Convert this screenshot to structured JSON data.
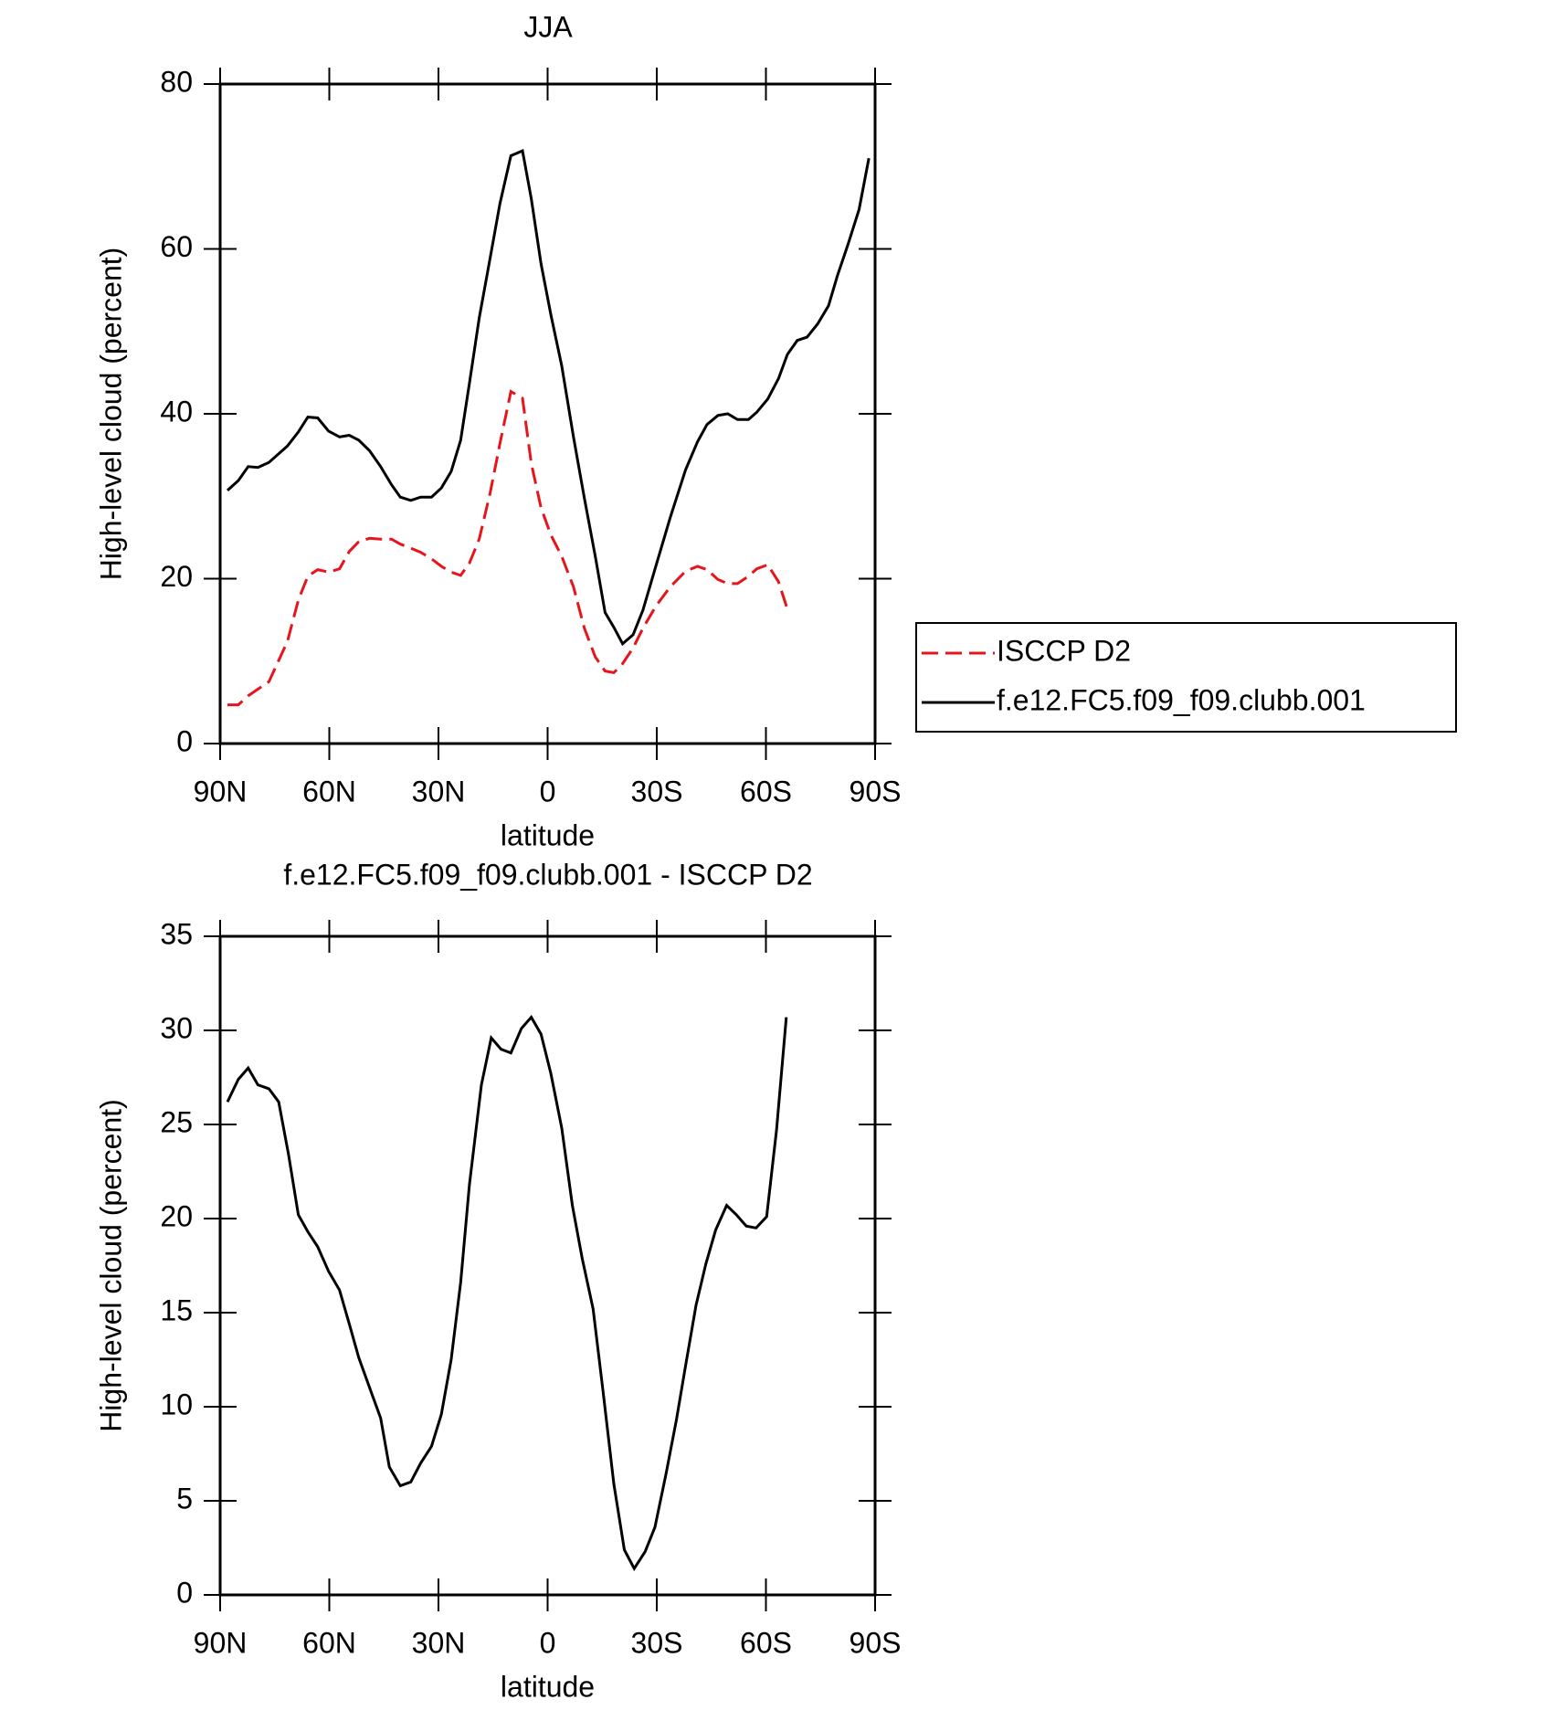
{
  "chart_data": [
    {
      "type": "line",
      "title": "JJA",
      "xlabel": "latitude",
      "ylabel": "High-level cloud (percent)",
      "x": [
        88,
        85,
        82.3,
        79.6,
        76.6,
        71.5,
        68.5,
        65.9,
        63.2,
        60.2,
        57.2,
        54.5,
        51.9,
        48.9,
        45.9,
        42.9,
        40.5,
        37.6,
        34.9,
        31.9,
        29.2,
        26.5,
        23.9,
        21.5,
        18.8,
        15.8,
        13.1,
        10.1,
        6.9,
        4.5,
        1.8,
        -0.9,
        -3.9,
        -7.1,
        -10.1,
        -13.1,
        -15.8,
        -18.2,
        -20.6,
        -23.5,
        -26.2,
        -29.8,
        -33.7,
        -37.9,
        -41.2,
        -43.8,
        -46.8,
        -49.5,
        -52.2,
        -55.2,
        -57.5,
        -60.5,
        -63.5,
        -65.9,
        -68.6,
        -71.3,
        -74.2,
        -77.2,
        -79.6,
        -82.6,
        -85.6,
        -88.3
      ],
      "series": [
        {
          "name": "ISCCP D2",
          "color": "#e8141b",
          "linestyle": "dashed",
          "values": [
            4.7,
            4.7,
            5.8,
            6.6,
            7.5,
            12.4,
            17.4,
            20.3,
            21.1,
            20.8,
            21.2,
            23.3,
            24.5,
            24.9,
            24.8,
            24.8,
            24.2,
            23.7,
            23.2,
            22.4,
            21.5,
            20.8,
            20.4,
            21.9,
            24.8,
            30.4,
            36.4,
            42.7,
            41.9,
            34.0,
            28.6,
            25.3,
            22.7,
            19.0,
            14.0,
            10.5,
            8.8,
            8.6,
            9.7,
            11.6,
            14.0,
            16.7,
            19.0,
            20.9,
            21.5,
            21.1,
            19.9,
            19.4,
            19.4,
            20.3,
            21.2,
            21.7,
            19.6,
            16.3,
            null,
            null,
            null,
            null,
            null,
            null,
            null,
            null
          ]
        },
        {
          "name": "f.e12.FC5.f09_f09.clubb.001",
          "color": "#000000",
          "linestyle": "solid",
          "values": [
            30.7,
            31.9,
            33.6,
            33.5,
            34.1,
            36.1,
            37.8,
            39.6,
            39.5,
            37.9,
            37.2,
            37.4,
            36.8,
            35.5,
            33.6,
            31.4,
            29.9,
            29.5,
            29.9,
            29.9,
            31.0,
            33.0,
            36.8,
            43.7,
            51.6,
            58.9,
            65.5,
            71.3,
            71.9,
            66.1,
            58.2,
            52.0,
            45.8,
            37.2,
            29.8,
            22.7,
            15.9,
            14.1,
            12.1,
            13.2,
            16.2,
            21.6,
            27.4,
            33.2,
            36.6,
            38.7,
            39.8,
            40.0,
            39.3,
            39.3,
            40.2,
            41.8,
            44.3,
            47.2,
            48.9,
            49.3,
            50.9,
            53.1,
            56.7,
            60.6,
            64.8,
            71.0
          ]
        }
      ],
      "xlim": [
        90,
        -90
      ],
      "xticks": [
        {
          "value": 90,
          "label": "90N"
        },
        {
          "value": 60,
          "label": "60N"
        },
        {
          "value": 30,
          "label": "30N"
        },
        0,
        {
          "value": -30,
          "label": "30S"
        },
        {
          "value": -60,
          "label": "60S"
        },
        {
          "value": -90,
          "label": "90S"
        }
      ],
      "ylim": [
        0,
        80
      ],
      "yticks": [
        0,
        20,
        40,
        60,
        80
      ],
      "legend": "right"
    },
    {
      "type": "line",
      "title": "f.e12.FC5.f09_f09.clubb.001 - ISCCP D2",
      "xlabel": "latitude",
      "ylabel": "High-level cloud (percent)",
      "x": [
        88,
        85,
        82.3,
        79.6,
        76.6,
        73.9,
        71.2,
        68.5,
        65.9,
        63.2,
        60.2,
        57.2,
        54.5,
        51.9,
        48.9,
        45.9,
        43.5,
        40.5,
        37.6,
        34.9,
        31.9,
        29.2,
        26.5,
        23.9,
        21.5,
        18.2,
        15.5,
        12.8,
        10.1,
        7.2,
        4.5,
        1.8,
        -0.9,
        -3.9,
        -6.8,
        -9.5,
        -12.5,
        -15.2,
        -18.2,
        -21.1,
        -23.8,
        -26.8,
        -29.5,
        -32.5,
        -35.4,
        -38.1,
        -40.8,
        -43.5,
        -46.2,
        -49.2,
        -51.9,
        -54.6,
        -57.3,
        -60.2,
        -62.9,
        -65.6
      ],
      "values": [
        26.2,
        27.4,
        28.0,
        27.1,
        26.9,
        26.2,
        23.4,
        20.2,
        19.3,
        18.5,
        17.2,
        16.2,
        14.4,
        12.6,
        11.0,
        9.4,
        6.8,
        5.8,
        6.0,
        7.0,
        7.9,
        9.6,
        12.5,
        16.6,
        21.8,
        27.1,
        29.6,
        29.0,
        28.8,
        30.1,
        30.7,
        29.8,
        27.7,
        24.8,
        20.7,
        17.9,
        15.2,
        10.9,
        5.9,
        2.4,
        1.4,
        2.3,
        3.6,
        6.4,
        9.3,
        12.4,
        15.4,
        17.6,
        19.4,
        20.7,
        20.2,
        19.6,
        19.5,
        20.1,
        24.7,
        30.7
      ],
      "color": "#000000",
      "xlim": [
        90,
        -90
      ],
      "xticks": [
        {
          "value": 90,
          "label": "90N"
        },
        {
          "value": 60,
          "label": "60N"
        },
        {
          "value": 30,
          "label": "30N"
        },
        0,
        {
          "value": -30,
          "label": "30S"
        },
        {
          "value": -60,
          "label": "60S"
        },
        {
          "value": -90,
          "label": "90S"
        }
      ],
      "ylim": [
        0,
        35
      ],
      "yticks": [
        0,
        5,
        10,
        15,
        20,
        25,
        30,
        35
      ]
    }
  ]
}
